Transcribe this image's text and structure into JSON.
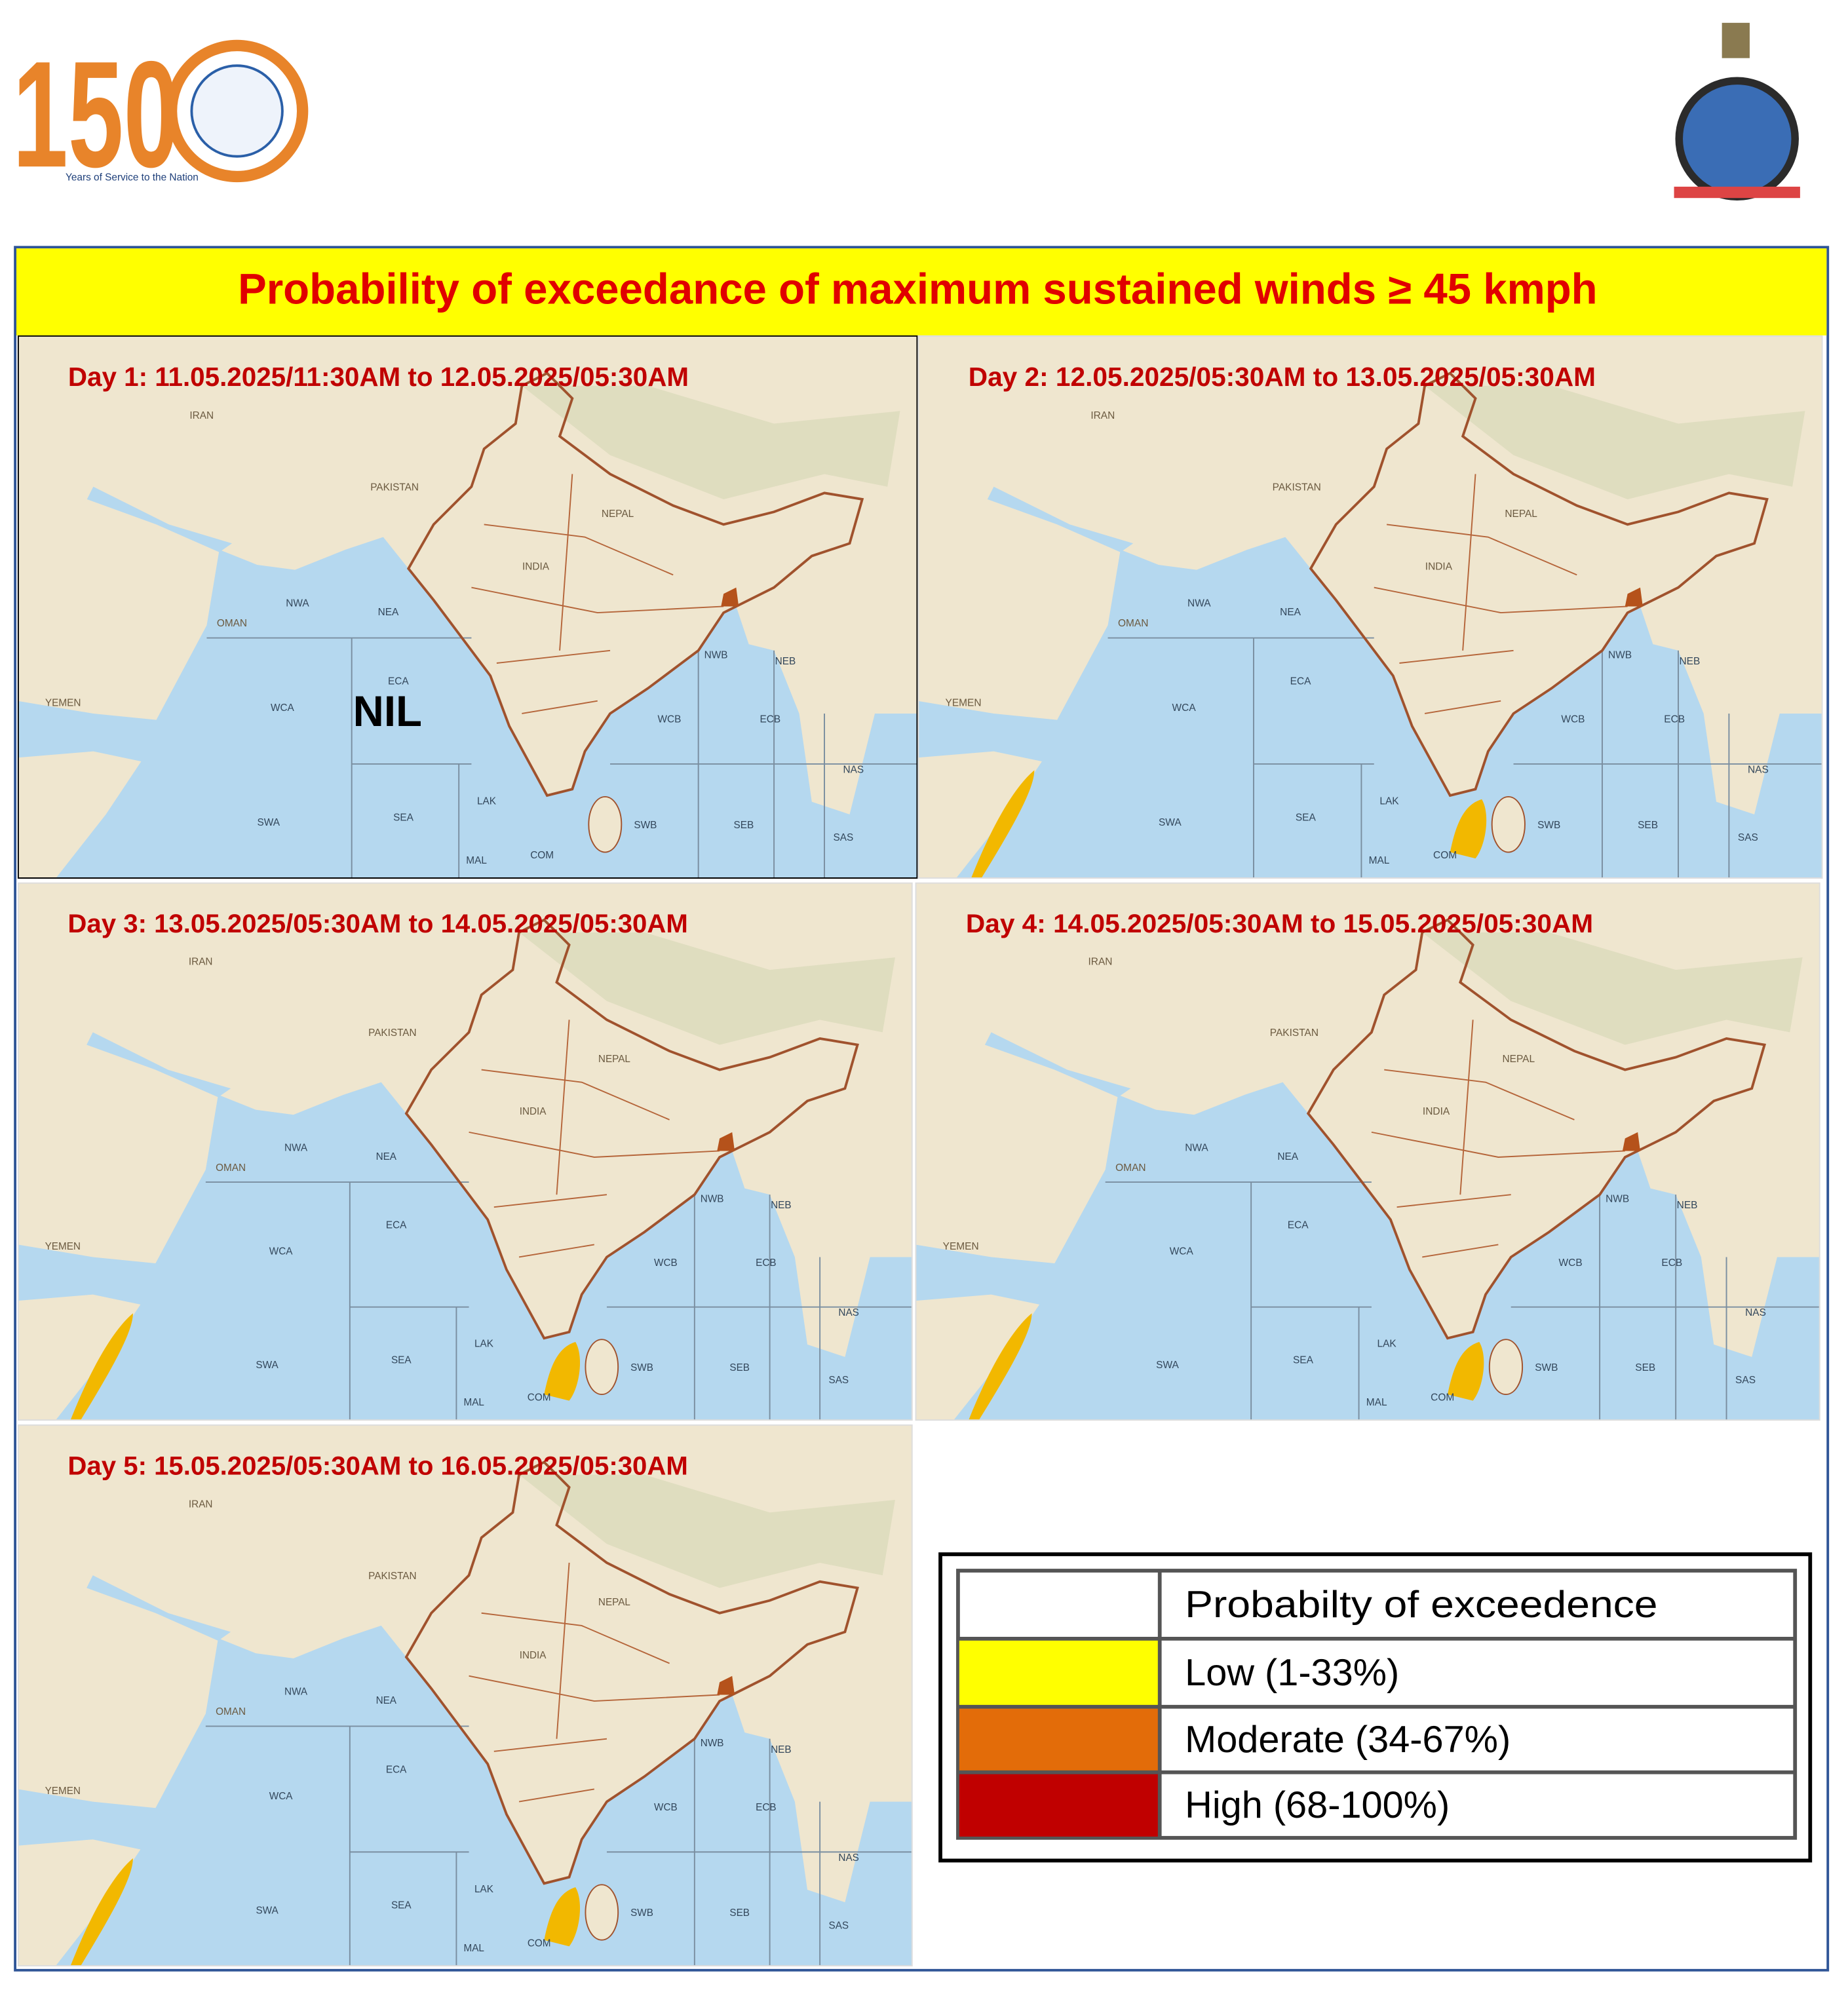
{
  "header": {
    "logo_number": "150",
    "logo_tagline": "Years of Service to the Nation"
  },
  "title": "Probability  of exceedance of maximum  sustained  winds ≥ 45 kmph",
  "panels": [
    {
      "label": "Day 1: 11.05.2025/11:30AM to 12.05.2025/05:30AM",
      "note": "NIL"
    },
    {
      "label": "Day 2: 12.05.2025/05:30AM to 13.05.2025/05:30AM"
    },
    {
      "label": "Day 3:  13.05.2025/05:30AM to 14.05.2025/05:30AM"
    },
    {
      "label": "Day 4: 14.05.2025/05:30AM to 15.05.2025/05:30AM"
    },
    {
      "label": "Day 5: 15.05.2025/05:30AM to 16.05.2025/05:30AM"
    }
  ],
  "map": {
    "zone_labels": [
      "NWA",
      "NEA",
      "ECA",
      "WCA",
      "SWA",
      "SEA",
      "LAK",
      "MAL",
      "COM",
      "SWB",
      "SEB",
      "WCB",
      "ECB",
      "NWB",
      "NEB",
      "NAS",
      "SAS"
    ],
    "place_labels": [
      "IRAN",
      "PAKISTAN",
      "OMAN",
      "YEMEN",
      "INDIA",
      "NEPAL"
    ]
  },
  "legend": {
    "header": "Probabilty of exceedence",
    "rows": [
      {
        "label": "Low (1-33%)",
        "color": "#ffff00"
      },
      {
        "label": "Moderate (34-67%)",
        "color": "#e36c09"
      },
      {
        "label": "High (68-100%)",
        "color": "#c00000"
      }
    ]
  }
}
